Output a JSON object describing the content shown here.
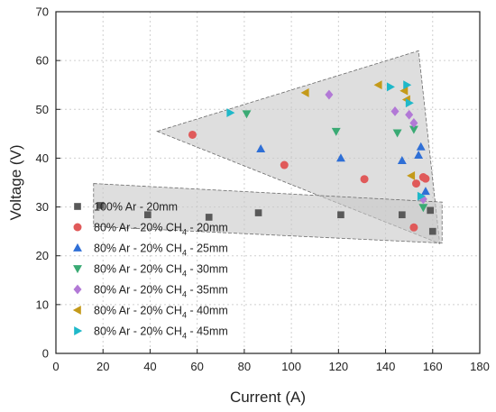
{
  "chart_data": {
    "type": "scatter",
    "title": "",
    "xlabel": "Current (A)",
    "ylabel": "Voltage (V)",
    "xlim": [
      0,
      180
    ],
    "ylim": [
      0,
      70
    ],
    "xticks": [
      0,
      20,
      40,
      60,
      80,
      100,
      120,
      140,
      160,
      180
    ],
    "yticks": [
      0,
      10,
      20,
      30,
      40,
      50,
      60,
      70
    ],
    "grid": true,
    "legend_position": "bottom-left",
    "regions": [
      {
        "fill": "#c8c8c8",
        "points": [
          [
            43,
            45.5
          ],
          [
            154,
            62
          ],
          [
            163,
            22.5
          ]
        ]
      },
      {
        "fill": "#c8c8c8",
        "points": [
          [
            16,
            34.8
          ],
          [
            164,
            31
          ],
          [
            164,
            22.6
          ],
          [
            16,
            26
          ]
        ]
      }
    ],
    "series": [
      {
        "legend_main": "100% Ar - 20mm",
        "legend_sub": "",
        "legend_tail": "",
        "marker": "square",
        "color": "#595959",
        "points": [
          [
            19,
            30.3
          ],
          [
            39,
            28.4
          ],
          [
            65,
            27.9
          ],
          [
            86,
            28.8
          ],
          [
            121,
            28.4
          ],
          [
            147,
            28.4
          ],
          [
            159,
            29.3
          ],
          [
            160,
            25
          ]
        ]
      },
      {
        "legend_main": "80% Ar - 20% CH",
        "legend_sub": "4",
        "legend_tail": " - 20mm",
        "marker": "circle",
        "color": "#e05a5a",
        "points": [
          [
            58,
            44.8
          ],
          [
            97,
            38.6
          ],
          [
            131,
            35.7
          ],
          [
            152,
            25.8
          ],
          [
            153,
            34.8
          ],
          [
            156,
            36.1
          ],
          [
            157,
            35.8
          ]
        ]
      },
      {
        "legend_main": "80% Ar - 20% CH",
        "legend_sub": "4",
        "legend_tail": " - 25mm",
        "marker": "triangle-up",
        "color": "#2f6fd6",
        "points": [
          [
            87,
            41.9
          ],
          [
            121,
            40
          ],
          [
            147,
            39.5
          ],
          [
            154,
            40.6
          ],
          [
            155,
            42.3
          ],
          [
            157,
            33.2
          ]
        ]
      },
      {
        "legend_main": "80% Ar - 20% CH",
        "legend_sub": "4",
        "legend_tail": " - 30mm",
        "marker": "triangle-down",
        "color": "#3aaa74",
        "points": [
          [
            81,
            49.1
          ],
          [
            119,
            45.5
          ],
          [
            145,
            45.2
          ],
          [
            152,
            45.9
          ],
          [
            156,
            29.9
          ]
        ]
      },
      {
        "legend_main": "80% Ar - 20% CH",
        "legend_sub": "4",
        "legend_tail": " - 35mm",
        "marker": "diamond",
        "color": "#b279d6",
        "points": [
          [
            116,
            53
          ],
          [
            144,
            49.6
          ],
          [
            150,
            48.9
          ],
          [
            152,
            47.2
          ],
          [
            156,
            31.6
          ]
        ]
      },
      {
        "legend_main": "80% Ar - 20% CH",
        "legend_sub": "4",
        "legend_tail": " - 40mm",
        "marker": "triangle-left",
        "color": "#c49a1a",
        "points": [
          [
            106,
            53.4
          ],
          [
            137,
            55
          ],
          [
            148,
            53.8
          ],
          [
            149,
            52
          ],
          [
            151,
            36.4
          ]
        ]
      },
      {
        "legend_main": "80% Ar - 20% CH",
        "legend_sub": "4",
        "legend_tail": " - 45mm",
        "marker": "triangle-right",
        "color": "#1fb8c9",
        "points": [
          [
            74,
            49.3
          ],
          [
            142,
            54.6
          ],
          [
            149,
            55
          ],
          [
            150,
            51.3
          ],
          [
            155,
            32.2
          ]
        ]
      }
    ]
  }
}
